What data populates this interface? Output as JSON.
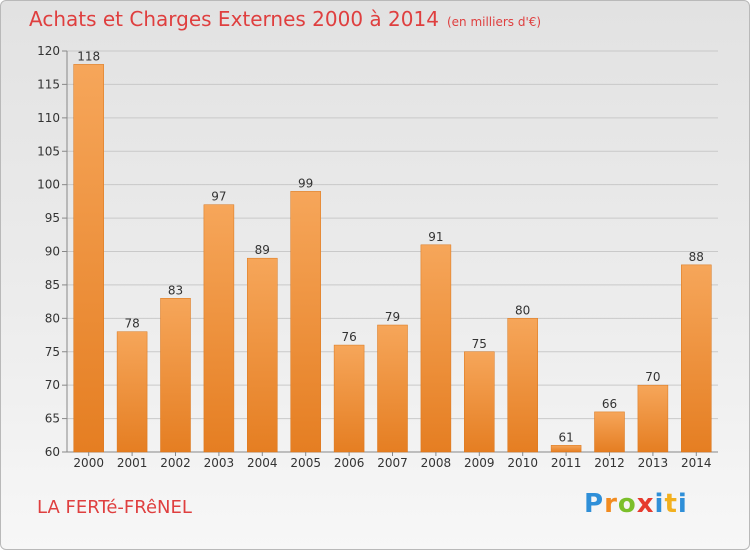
{
  "title": "Achats et Charges Externes 2000 à 2014",
  "unit": "(en milliers d'€)",
  "commune": "LA FERTé-FRêNEL",
  "logo": {
    "text": "Proxiti",
    "letters": [
      "P",
      "r",
      "o",
      "x",
      "i",
      "t",
      "i"
    ],
    "colors": [
      "#2f8fd8",
      "#f28b1f",
      "#7bbf2a",
      "#e63a2e",
      "#2f8fd8",
      "#f2b01e",
      "#2f8fd8"
    ]
  },
  "colors": {
    "title": "#df3f3f",
    "bar_light": "#f6a65a",
    "bar_dark": "#e57e22",
    "grid": "#c9c9c9"
  },
  "chart_data": {
    "type": "bar",
    "categories": [
      "2000",
      "2001",
      "2002",
      "2003",
      "2004",
      "2005",
      "2006",
      "2007",
      "2008",
      "2009",
      "2010",
      "2011",
      "2012",
      "2013",
      "2014"
    ],
    "values": [
      118,
      78,
      83,
      97,
      89,
      99,
      76,
      79,
      91,
      75,
      80,
      61,
      66,
      70,
      88
    ],
    "yticks": [
      60,
      65,
      70,
      75,
      80,
      85,
      90,
      95,
      100,
      105,
      110,
      115,
      120
    ],
    "ylim": [
      60,
      120
    ],
    "grid": true,
    "legend": "none",
    "title": "Achats et Charges Externes 2000 à 2014",
    "xlabel": "",
    "ylabel": ""
  }
}
